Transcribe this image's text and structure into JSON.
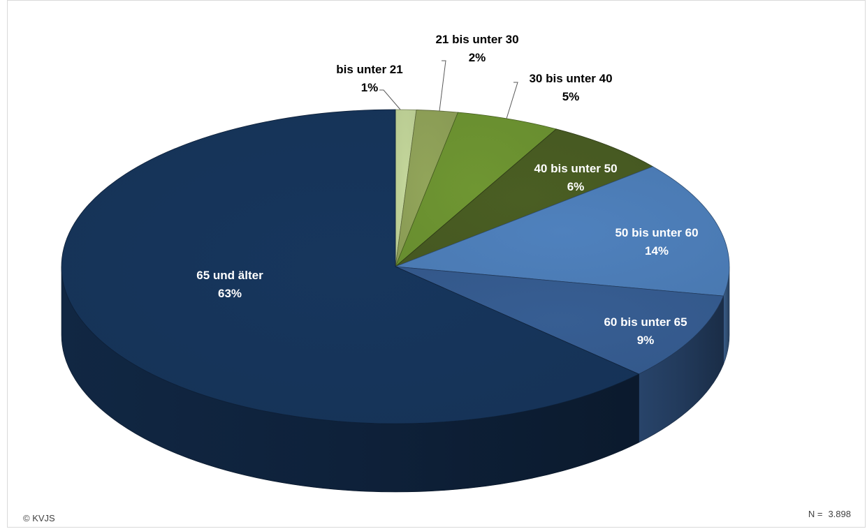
{
  "chart_data": {
    "type": "pie",
    "style": "3d",
    "slices": [
      {
        "label": "bis unter 21",
        "value": 1,
        "value_label": "1%",
        "color": "#c4d79b"
      },
      {
        "label": "21 bis unter 30",
        "value": 2,
        "value_label": "2%",
        "color": "#92a55a"
      },
      {
        "label": "30 bis unter 40",
        "value": 5,
        "value_label": "5%",
        "color": "#6f9632"
      },
      {
        "label": "40 bis unter 50",
        "value": 6,
        "value_label": "6%",
        "color": "#4a5e23"
      },
      {
        "label": "50 bis unter 60",
        "value": 14,
        "value_label": "14%",
        "color": "#4f81bd"
      },
      {
        "label": "60 bis unter 65",
        "value": 9,
        "value_label": "9%",
        "color": "#375e93"
      },
      {
        "label": "65 und älter",
        "value": 63,
        "value_label": "63%",
        "color": "#17365d"
      }
    ]
  },
  "footer": {
    "copyright": "© KVJS",
    "n_prefix": "N =",
    "n_value": "3.898"
  }
}
